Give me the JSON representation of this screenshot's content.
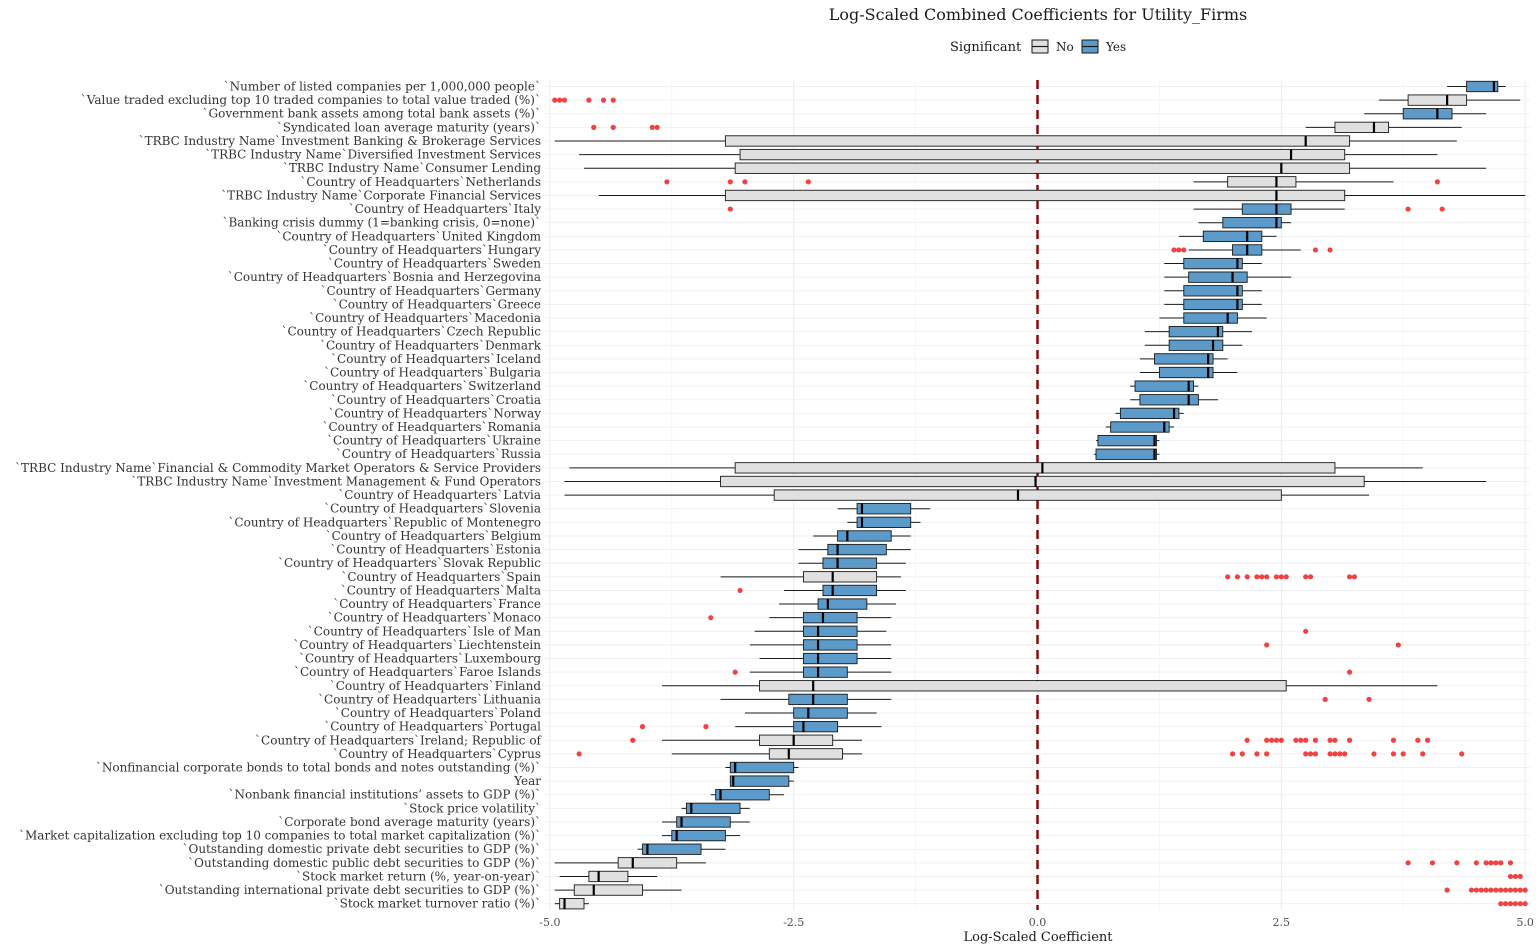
{
  "chart_data": {
    "type": "boxplot",
    "title": "Log-Scaled Combined Coefficients for Utility_Firms",
    "xlabel": "Log-Scaled Coefficient",
    "xlim": [
      -5.05,
      5.05
    ],
    "xticks": [
      -5.0,
      -2.5,
      0.0,
      2.5,
      5.0
    ],
    "xtick_labels": [
      "-5.0",
      "-2.5",
      "0.0",
      "2.5",
      "5.0"
    ],
    "reference_line": 0.0,
    "reference_color": "#8b0000",
    "outlier_color": "#ee2222",
    "legend": {
      "title": "Significant",
      "placement": "top",
      "entries": [
        {
          "label": "No",
          "color": "#e0e0e0"
        },
        {
          "label": "Yes",
          "color": "#5b9ac9"
        }
      ]
    },
    "grid": true,
    "boxes": [
      {
        "label": "`Number of listed companies per 1,000,000 people`",
        "sig": "Yes",
        "wl": 4.2,
        "q1": 4.4,
        "med": 4.68,
        "q3": 4.72,
        "wh": 4.8,
        "out": []
      },
      {
        "label": "`Value traded excluding top 10 traded companies to total value traded (%)`",
        "sig": "No",
        "wl": 3.5,
        "q1": 3.8,
        "med": 4.2,
        "q3": 4.4,
        "wh": 4.95,
        "out": [
          -4.95,
          -4.9,
          -4.85,
          -4.6,
          -4.45,
          -4.35
        ]
      },
      {
        "label": "`Government bank assets among total bank assets (%)`",
        "sig": "Yes",
        "wl": 3.35,
        "q1": 3.75,
        "med": 4.1,
        "q3": 4.25,
        "wh": 4.6,
        "out": []
      },
      {
        "label": "`Syndicated loan average maturity (years)`",
        "sig": "No",
        "wl": 2.75,
        "q1": 3.05,
        "med": 3.45,
        "q3": 3.6,
        "wh": 4.35,
        "out": [
          -4.55,
          -4.35,
          -3.95,
          -3.9
        ]
      },
      {
        "label": "`TRBC Industry Name`Investment Banking & Brokerage Services",
        "sig": "No",
        "wl": -4.95,
        "q1": -3.2,
        "med": 2.75,
        "q3": 3.2,
        "wh": 4.3,
        "out": []
      },
      {
        "label": "`TRBC Industry Name`Diversified Investment Services",
        "sig": "No",
        "wl": -4.7,
        "q1": -3.05,
        "med": 2.6,
        "q3": 3.15,
        "wh": 4.1,
        "out": []
      },
      {
        "label": "`TRBC Industry Name`Consumer Lending",
        "sig": "No",
        "wl": -4.65,
        "q1": -3.1,
        "med": 2.5,
        "q3": 3.2,
        "wh": 4.6,
        "out": []
      },
      {
        "label": "`Country of Headquarters`Netherlands",
        "sig": "No",
        "wl": 1.6,
        "q1": 1.95,
        "med": 2.45,
        "q3": 2.65,
        "wh": 3.65,
        "out": [
          -3.8,
          -3.15,
          -3.0,
          -2.35,
          4.1
        ]
      },
      {
        "label": "`TRBC Industry Name`Corporate Financial Services",
        "sig": "No",
        "wl": -4.5,
        "q1": -3.2,
        "med": 2.45,
        "q3": 3.15,
        "wh": 5.0,
        "out": []
      },
      {
        "label": "`Country of Headquarters`Italy",
        "sig": "Yes",
        "wl": 1.6,
        "q1": 2.1,
        "med": 2.45,
        "q3": 2.6,
        "wh": 3.15,
        "out": [
          -3.15,
          3.8,
          4.15
        ]
      },
      {
        "label": "`Banking crisis dummy (1=banking crisis, 0=none)`",
        "sig": "Yes",
        "wl": 1.65,
        "q1": 1.9,
        "med": 2.45,
        "q3": 2.5,
        "wh": 2.6,
        "out": []
      },
      {
        "label": "`Country of Headquarters`United Kingdom",
        "sig": "Yes",
        "wl": 1.45,
        "q1": 1.7,
        "med": 2.15,
        "q3": 2.3,
        "wh": 2.45,
        "out": []
      },
      {
        "label": "`Country of Headquarters`Hungary",
        "sig": "Yes",
        "wl": 1.55,
        "q1": 2.0,
        "med": 2.15,
        "q3": 2.3,
        "wh": 2.7,
        "out": [
          1.4,
          1.45,
          1.5,
          2.85,
          3.0
        ]
      },
      {
        "label": "`Country of Headquarters`Sweden",
        "sig": "Yes",
        "wl": 1.3,
        "q1": 1.5,
        "med": 2.05,
        "q3": 2.1,
        "wh": 2.3,
        "out": []
      },
      {
        "label": "`Country of Headquarters`Bosnia and Herzegovina",
        "sig": "Yes",
        "wl": 1.3,
        "q1": 1.55,
        "med": 2.0,
        "q3": 2.15,
        "wh": 2.6,
        "out": []
      },
      {
        "label": "`Country of Headquarters`Germany",
        "sig": "Yes",
        "wl": 1.3,
        "q1": 1.5,
        "med": 2.05,
        "q3": 2.1,
        "wh": 2.3,
        "out": []
      },
      {
        "label": "`Country of Headquarters`Greece",
        "sig": "Yes",
        "wl": 1.3,
        "q1": 1.5,
        "med": 2.05,
        "q3": 2.1,
        "wh": 2.3,
        "out": []
      },
      {
        "label": "`Country of Headquarters`Macedonia",
        "sig": "Yes",
        "wl": 1.25,
        "q1": 1.5,
        "med": 1.95,
        "q3": 2.05,
        "wh": 2.35,
        "out": []
      },
      {
        "label": "`Country of Headquarters`Czech Republic",
        "sig": "Yes",
        "wl": 1.1,
        "q1": 1.35,
        "med": 1.85,
        "q3": 1.9,
        "wh": 2.2,
        "out": []
      },
      {
        "label": "`Country of Headquarters`Denmark",
        "sig": "Yes",
        "wl": 1.1,
        "q1": 1.35,
        "med": 1.8,
        "q3": 1.9,
        "wh": 2.1,
        "out": []
      },
      {
        "label": "`Country of Headquarters`Iceland",
        "sig": "Yes",
        "wl": 1.05,
        "q1": 1.2,
        "med": 1.75,
        "q3": 1.8,
        "wh": 1.95,
        "out": []
      },
      {
        "label": "`Country of Headquarters`Bulgaria",
        "sig": "Yes",
        "wl": 1.05,
        "q1": 1.25,
        "med": 1.75,
        "q3": 1.8,
        "wh": 2.05,
        "out": []
      },
      {
        "label": "`Country of Headquarters`Switzerland",
        "sig": "Yes",
        "wl": 0.95,
        "q1": 1.0,
        "med": 1.55,
        "q3": 1.6,
        "wh": 1.65,
        "out": []
      },
      {
        "label": "`Country of Headquarters`Croatia",
        "sig": "Yes",
        "wl": 0.95,
        "q1": 1.05,
        "med": 1.55,
        "q3": 1.65,
        "wh": 1.85,
        "out": []
      },
      {
        "label": "`Country of Headquarters`Norway",
        "sig": "Yes",
        "wl": 0.8,
        "q1": 0.85,
        "med": 1.4,
        "q3": 1.45,
        "wh": 1.5,
        "out": []
      },
      {
        "label": "`Country of Headquarters`Romania",
        "sig": "Yes",
        "wl": 0.7,
        "q1": 0.75,
        "med": 1.3,
        "q3": 1.35,
        "wh": 1.4,
        "out": []
      },
      {
        "label": "`Country of Headquarters`Ukraine",
        "sig": "Yes",
        "wl": 0.6,
        "q1": 0.62,
        "med": 1.2,
        "q3": 1.22,
        "wh": 1.25,
        "out": []
      },
      {
        "label": "`Country of Headquarters`Russia",
        "sig": "Yes",
        "wl": 0.58,
        "q1": 0.6,
        "med": 1.2,
        "q3": 1.22,
        "wh": 1.25,
        "out": []
      },
      {
        "label": "`TRBC Industry Name`Financial & Commodity Market Operators & Service Providers",
        "sig": "No",
        "wl": -4.8,
        "q1": -3.1,
        "med": 0.05,
        "q3": 3.05,
        "wh": 3.95,
        "out": []
      },
      {
        "label": "`TRBC Industry Name`Investment Management & Fund Operators",
        "sig": "No",
        "wl": -4.85,
        "q1": -3.25,
        "med": -0.02,
        "q3": 3.35,
        "wh": 4.6,
        "out": []
      },
      {
        "label": "`Country of Headquarters`Latvia",
        "sig": "No",
        "wl": -4.85,
        "q1": -2.7,
        "med": -0.2,
        "q3": 2.5,
        "wh": 3.4,
        "out": []
      },
      {
        "label": "`Country of Headquarters`Slovenia",
        "sig": "Yes",
        "wl": -2.05,
        "q1": -1.85,
        "med": -1.8,
        "q3": -1.3,
        "wh": -1.1,
        "out": []
      },
      {
        "label": "`Country of Headquarters`Republic of Montenegro",
        "sig": "Yes",
        "wl": -1.95,
        "q1": -1.85,
        "med": -1.8,
        "q3": -1.3,
        "wh": -1.2,
        "out": []
      },
      {
        "label": "`Country of Headquarters`Belgium",
        "sig": "Yes",
        "wl": -2.3,
        "q1": -2.05,
        "med": -1.95,
        "q3": -1.5,
        "wh": -1.3,
        "out": []
      },
      {
        "label": "`Country of Headquarters`Estonia",
        "sig": "Yes",
        "wl": -2.45,
        "q1": -2.15,
        "med": -2.05,
        "q3": -1.55,
        "wh": -1.3,
        "out": []
      },
      {
        "label": "`Country of Headquarters`Slovak Republic",
        "sig": "Yes",
        "wl": -2.45,
        "q1": -2.2,
        "med": -2.05,
        "q3": -1.65,
        "wh": -1.35,
        "out": []
      },
      {
        "label": "`Country of Headquarters`Spain",
        "sig": "No",
        "wl": -3.25,
        "q1": -2.4,
        "med": -2.1,
        "q3": -1.65,
        "wh": -1.4,
        "out": [
          1.95,
          2.05,
          2.15,
          2.25,
          2.3,
          2.35,
          2.45,
          2.5,
          2.55,
          2.75,
          2.8,
          3.2,
          3.25
        ]
      },
      {
        "label": "`Country of Headquarters`Malta",
        "sig": "Yes",
        "wl": -2.6,
        "q1": -2.2,
        "med": -2.1,
        "q3": -1.65,
        "wh": -1.35,
        "out": [
          -3.05
        ]
      },
      {
        "label": "`Country of Headquarters`France",
        "sig": "Yes",
        "wl": -2.65,
        "q1": -2.25,
        "med": -2.15,
        "q3": -1.75,
        "wh": -1.45,
        "out": []
      },
      {
        "label": "`Country of Headquarters`Monaco",
        "sig": "Yes",
        "wl": -2.75,
        "q1": -2.4,
        "med": -2.2,
        "q3": -1.85,
        "wh": -1.5,
        "out": [
          -3.35
        ]
      },
      {
        "label": "`Country of Headquarters`Isle of Man",
        "sig": "Yes",
        "wl": -2.9,
        "q1": -2.4,
        "med": -2.25,
        "q3": -1.85,
        "wh": -1.55,
        "out": [
          2.75
        ]
      },
      {
        "label": "`Country of Headquarters`Liechtenstein",
        "sig": "Yes",
        "wl": -2.95,
        "q1": -2.4,
        "med": -2.25,
        "q3": -1.85,
        "wh": -1.5,
        "out": [
          2.35,
          3.7
        ]
      },
      {
        "label": "`Country of Headquarters`Luxembourg",
        "sig": "Yes",
        "wl": -2.85,
        "q1": -2.4,
        "med": -2.25,
        "q3": -1.85,
        "wh": -1.5,
        "out": []
      },
      {
        "label": "`Country of Headquarters`Faroe Islands",
        "sig": "Yes",
        "wl": -2.95,
        "q1": -2.4,
        "med": -2.25,
        "q3": -1.95,
        "wh": -1.5,
        "out": [
          -3.1,
          3.2
        ]
      },
      {
        "label": "`Country of Headquarters`Finland",
        "sig": "No",
        "wl": -3.85,
        "q1": -2.85,
        "med": -2.3,
        "q3": 2.55,
        "wh": 4.1,
        "out": []
      },
      {
        "label": "`Country of Headquarters`Lithuania",
        "sig": "Yes",
        "wl": -3.25,
        "q1": -2.55,
        "med": -2.3,
        "q3": -1.95,
        "wh": -1.5,
        "out": [
          2.95,
          3.4
        ]
      },
      {
        "label": "`Country of Headquarters`Poland",
        "sig": "Yes",
        "wl": -3.0,
        "q1": -2.5,
        "med": -2.35,
        "q3": -1.95,
        "wh": -1.65,
        "out": []
      },
      {
        "label": "`Country of Headquarters`Portugal",
        "sig": "Yes",
        "wl": -3.1,
        "q1": -2.5,
        "med": -2.4,
        "q3": -2.05,
        "wh": -1.6,
        "out": [
          -4.05,
          -3.4
        ]
      },
      {
        "label": "`Country of Headquarters`Ireland; Republic of",
        "sig": "No",
        "wl": -3.85,
        "q1": -2.85,
        "med": -2.5,
        "q3": -2.1,
        "wh": -1.8,
        "out": [
          -4.15,
          2.15,
          2.35,
          2.4,
          2.45,
          2.5,
          2.65,
          2.7,
          2.75,
          2.85,
          3.0,
          3.05,
          3.2,
          3.65,
          3.9,
          4.0
        ]
      },
      {
        "label": "`Country of Headquarters`Cyprus",
        "sig": "No",
        "wl": -3.75,
        "q1": -2.75,
        "med": -2.55,
        "q3": -2.0,
        "wh": -1.8,
        "out": [
          -4.7,
          2.0,
          2.1,
          2.25,
          2.35,
          2.75,
          2.8,
          2.85,
          3.0,
          3.05,
          3.1,
          3.15,
          3.45,
          3.65,
          3.75,
          3.95,
          4.35
        ]
      },
      {
        "label": "`Nonfinancial corporate bonds to total bonds and notes outstanding (%)`",
        "sig": "Yes",
        "wl": -3.2,
        "q1": -3.15,
        "med": -3.1,
        "q3": -2.5,
        "wh": -2.45,
        "out": []
      },
      {
        "label": "Year",
        "sig": "Yes",
        "wl": -3.15,
        "q1": -3.15,
        "med": -3.12,
        "q3": -2.55,
        "wh": -2.5,
        "out": []
      },
      {
        "label": "`Nonbank financial institutions’ assets to GDP (%)`",
        "sig": "Yes",
        "wl": -3.35,
        "q1": -3.3,
        "med": -3.25,
        "q3": -2.75,
        "wh": -2.6,
        "out": []
      },
      {
        "label": "`Stock price volatility`",
        "sig": "Yes",
        "wl": -3.65,
        "q1": -3.6,
        "med": -3.55,
        "q3": -3.05,
        "wh": -2.95,
        "out": []
      },
      {
        "label": "`Corporate bond average maturity (years)`",
        "sig": "Yes",
        "wl": -3.85,
        "q1": -3.7,
        "med": -3.65,
        "q3": -3.15,
        "wh": -2.95,
        "out": []
      },
      {
        "label": "`Market capitalization excluding top 10 companies to total market capitalization (%)`",
        "sig": "Yes",
        "wl": -3.85,
        "q1": -3.75,
        "med": -3.7,
        "q3": -3.2,
        "wh": -3.05,
        "out": []
      },
      {
        "label": "`Outstanding domestic private debt securities to GDP (%)`",
        "sig": "Yes",
        "wl": -4.1,
        "q1": -4.05,
        "med": -4.0,
        "q3": -3.45,
        "wh": -3.2,
        "out": []
      },
      {
        "label": "`Outstanding domestic public debt securities to GDP (%)`",
        "sig": "No",
        "wl": -4.95,
        "q1": -4.3,
        "med": -4.15,
        "q3": -3.7,
        "wh": -3.4,
        "out": [
          3.8,
          4.05,
          4.3,
          4.5,
          4.6,
          4.65,
          4.7,
          4.75,
          4.85
        ]
      },
      {
        "label": "`Stock market return (%, year-on-year)`",
        "sig": "No",
        "wl": -4.9,
        "q1": -4.6,
        "med": -4.5,
        "q3": -4.2,
        "wh": -3.9,
        "out": [
          4.85,
          4.9,
          4.95
        ]
      },
      {
        "label": "`Outstanding international private debt securities to GDP (%)`",
        "sig": "No",
        "wl": -4.95,
        "q1": -4.75,
        "med": -4.55,
        "q3": -4.05,
        "wh": -3.65,
        "out": [
          4.2,
          4.45,
          4.5,
          4.55,
          4.6,
          4.65,
          4.7,
          4.75,
          4.8,
          4.85,
          4.9,
          4.95,
          5.0
        ]
      },
      {
        "label": "`Stock market turnover ratio (%)`",
        "sig": "No",
        "wl": -4.95,
        "q1": -4.9,
        "med": -4.85,
        "q3": -4.65,
        "wh": -4.6,
        "out": [
          4.75,
          4.8,
          4.85,
          4.9,
          4.95,
          5.0
        ]
      }
    ]
  }
}
